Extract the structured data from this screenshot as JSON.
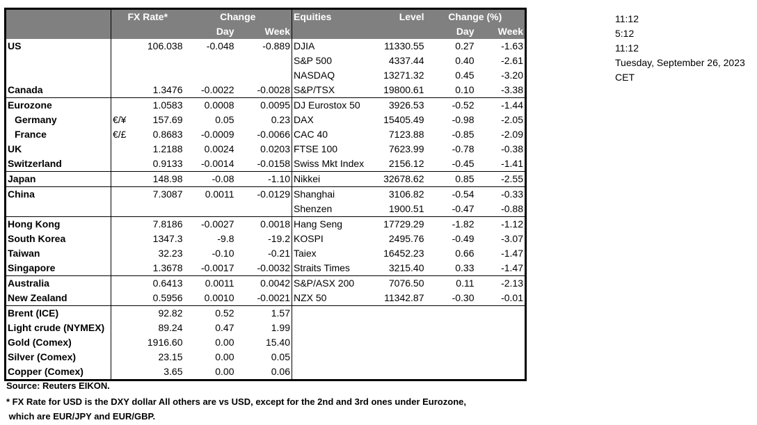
{
  "header": {
    "fx_rate": "FX Rate*",
    "change": "Change",
    "day": "Day",
    "week": "Week",
    "equities": "Equities",
    "level": "Level",
    "change_pct": "Change (%)"
  },
  "rows": [
    {
      "label": "US",
      "pair": "",
      "fx": "106.038",
      "fx_day": "-0.048",
      "fx_week": "-0.889",
      "eq": "DJIA",
      "level": "11330.55",
      "eq_day": "0.27",
      "eq_week": "-1.63"
    },
    {
      "label": "",
      "pair": "",
      "fx": "",
      "fx_day": "",
      "fx_week": "",
      "eq": "S&P 500",
      "level": "4337.44",
      "eq_day": "0.40",
      "eq_week": "-2.61"
    },
    {
      "label": "",
      "pair": "",
      "fx": "",
      "fx_day": "",
      "fx_week": "",
      "eq": "NASDAQ",
      "level": "13271.32",
      "eq_day": "0.45",
      "eq_week": "-3.20"
    },
    {
      "label": "Canada",
      "pair": "",
      "fx": "1.3476",
      "fx_day": "-0.0022",
      "fx_week": "-0.0028",
      "eq": "S&P/TSX",
      "level": "19800.61",
      "eq_day": "0.10",
      "eq_week": "-3.38"
    },
    {
      "label": "Eurozone",
      "pair": "",
      "fx": "1.0583",
      "fx_day": "0.0008",
      "fx_week": "0.0095",
      "eq": "DJ Eurostox 50",
      "level": "3926.53",
      "eq_day": "-0.52",
      "eq_week": "-1.44"
    },
    {
      "label": "Germany",
      "pair": "€/¥",
      "fx": "157.69",
      "fx_day": "0.05",
      "fx_week": "0.23",
      "eq": "DAX",
      "level": "15405.49",
      "eq_day": "-0.98",
      "eq_week": "-2.05"
    },
    {
      "label": "France",
      "pair": "€/£",
      "fx": "0.8683",
      "fx_day": "-0.0009",
      "fx_week": "-0.0066",
      "eq": "CAC 40",
      "level": "7123.88",
      "eq_day": "-0.85",
      "eq_week": "-2.09"
    },
    {
      "label": "UK",
      "pair": "",
      "fx": "1.2188",
      "fx_day": "0.0024",
      "fx_week": "0.0203",
      "eq": "FTSE 100",
      "level": "7623.99",
      "eq_day": "-0.78",
      "eq_week": "-0.38"
    },
    {
      "label": "Switzerland",
      "pair": "",
      "fx": "0.9133",
      "fx_day": "-0.0014",
      "fx_week": "-0.0158",
      "eq": "Swiss Mkt Index",
      "level": "2156.12",
      "eq_day": "-0.45",
      "eq_week": "-1.41"
    },
    {
      "label": "Japan",
      "pair": "",
      "fx": "148.98",
      "fx_day": "-0.08",
      "fx_week": "-1.10",
      "eq": "Nikkei",
      "level": "32678.62",
      "eq_day": "0.85",
      "eq_week": "-2.55"
    },
    {
      "label": "China",
      "pair": "",
      "fx": "7.3087",
      "fx_day": "0.0011",
      "fx_week": "-0.0129",
      "eq": "Shanghai",
      "level": "3106.82",
      "eq_day": "-0.54",
      "eq_week": "-0.33"
    },
    {
      "label": "",
      "pair": "",
      "fx": "",
      "fx_day": "",
      "fx_week": "",
      "eq": "Shenzen",
      "level": "1900.51",
      "eq_day": "-0.47",
      "eq_week": "-0.88"
    },
    {
      "label": "Hong Kong",
      "pair": "",
      "fx": "7.8186",
      "fx_day": "-0.0027",
      "fx_week": "0.0018",
      "eq": "Hang Seng",
      "level": "17729.29",
      "eq_day": "-1.82",
      "eq_week": "-1.12"
    },
    {
      "label": "South Korea",
      "pair": "",
      "fx": "1347.3",
      "fx_day": "-9.8",
      "fx_week": "-19.2",
      "eq": "KOSPI",
      "level": "2495.76",
      "eq_day": "-0.49",
      "eq_week": "-3.07"
    },
    {
      "label": "Taiwan",
      "pair": "",
      "fx": "32.23",
      "fx_day": "-0.10",
      "fx_week": "-0.21",
      "eq": "Taiex",
      "level": "16452.23",
      "eq_day": "0.66",
      "eq_week": "-1.47"
    },
    {
      "label": "Singapore",
      "pair": "",
      "fx": "1.3678",
      "fx_day": "-0.0017",
      "fx_week": "-0.0032",
      "eq": "Straits Times",
      "level": "3215.40",
      "eq_day": "0.33",
      "eq_week": "-1.47"
    },
    {
      "label": "Australia",
      "pair": "",
      "fx": "0.6413",
      "fx_day": "0.0011",
      "fx_week": "0.0042",
      "eq": "S&P/ASX  200",
      "level": "7076.50",
      "eq_day": "0.11",
      "eq_week": "-2.13"
    },
    {
      "label": "New Zealand",
      "pair": "",
      "fx": "0.5956",
      "fx_day": "0.0010",
      "fx_week": "-0.0021",
      "eq": "NZX 50",
      "level": "11342.87",
      "eq_day": "-0.30",
      "eq_week": "-0.01"
    },
    {
      "label": "Brent (ICE)",
      "pair": "",
      "fx": "92.82",
      "fx_day": "0.52",
      "fx_week": "1.57",
      "eq": "",
      "level": "",
      "eq_day": "",
      "eq_week": ""
    },
    {
      "label": "Light crude (NYMEX)",
      "pair": "",
      "fx": "89.24",
      "fx_day": "0.47",
      "fx_week": "1.99",
      "eq": "",
      "level": "",
      "eq_day": "",
      "eq_week": ""
    },
    {
      "label": "Gold (Comex)",
      "pair": "",
      "fx": "1916.60",
      "fx_day": "0.00",
      "fx_week": "15.40",
      "eq": "",
      "level": "",
      "eq_day": "",
      "eq_week": ""
    },
    {
      "label": "Silver (Comex)",
      "pair": "",
      "fx": "23.15",
      "fx_day": "0.00",
      "fx_week": "0.05",
      "eq": "",
      "level": "",
      "eq_day": "",
      "eq_week": ""
    },
    {
      "label": "Copper (Comex)",
      "pair": "",
      "fx": "3.65",
      "fx_day": "0.00",
      "fx_week": "0.06",
      "eq": "",
      "level": "",
      "eq_day": "",
      "eq_week": ""
    }
  ],
  "group_end_rows": [
    3,
    8,
    9,
    11,
    15,
    17
  ],
  "side": {
    "time1": "11:12",
    "time2": "5:12",
    "time3": "11:12",
    "date": "Tuesday, September 26, 2023",
    "tz": "CET"
  },
  "notes": {
    "source": "Source:  Reuters EIKON.",
    "footnote1": "* FX Rate for USD is the DXY dollar  All others are vs USD, except for the 2nd and 3rd ones under Eurozone,",
    "footnote2": " which are EUR/JPY and EUR/GBP."
  }
}
